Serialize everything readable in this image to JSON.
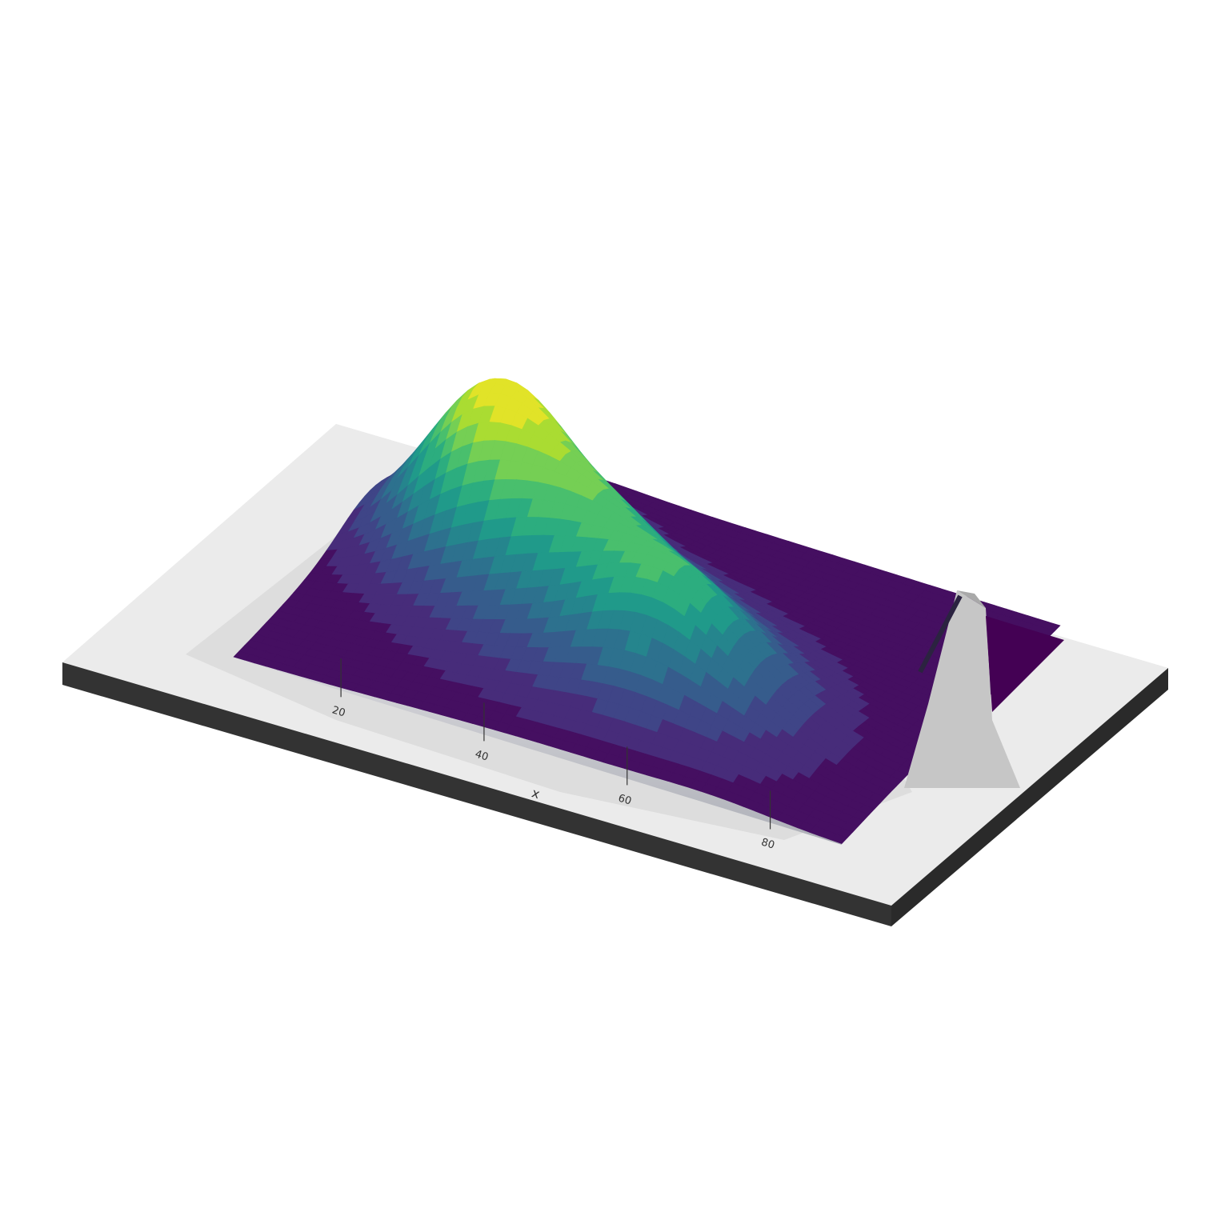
{
  "chart_data": {
    "type": "heatmap",
    "render_style": "3d-extruded-surface",
    "colormap": "viridis",
    "title": "",
    "xlabel": "x",
    "ylabel": "",
    "x_ticks": [
      20,
      40,
      60,
      80
    ],
    "x_range": [
      5,
      90
    ],
    "y_range": [
      0,
      60
    ],
    "z_range": [
      0,
      1
    ],
    "peaks": [
      {
        "x": 22,
        "y": 38,
        "z": 1.0
      },
      {
        "x": 38,
        "y": 30,
        "z": 0.55
      },
      {
        "x": 55,
        "y": 20,
        "z": 0.5
      }
    ],
    "colors": {
      "base_top": "#ebebeb",
      "base_side": "#333333",
      "side_panel": "#c2c2c7",
      "axis_text": "#333333"
    }
  }
}
